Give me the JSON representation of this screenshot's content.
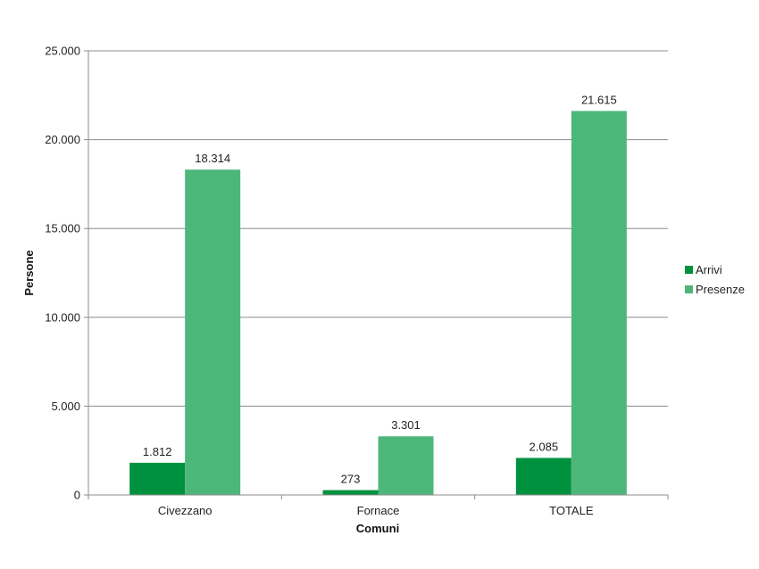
{
  "chart_data": {
    "type": "bar",
    "categories": [
      "Civezzano",
      "Fornace",
      "TOTALE"
    ],
    "series": [
      {
        "name": "Arrivi",
        "values": [
          1812,
          273,
          2085
        ],
        "labels": [
          "1.812",
          "273",
          "2.085"
        ],
        "color": "#00913f"
      },
      {
        "name": "Presenze",
        "values": [
          18314,
          3301,
          21615
        ],
        "labels": [
          "18.314",
          "3.301",
          "21.615"
        ],
        "color": "#4db77a"
      }
    ],
    "title": "",
    "xlabel": "Comuni",
    "ylabel": "Persone",
    "ylim": [
      0,
      25000
    ],
    "yticks": [
      0,
      5000,
      10000,
      15000,
      20000,
      25000
    ],
    "ytick_labels": [
      "0",
      "5.000",
      "10.000",
      "15.000",
      "20.000",
      "25.000"
    ],
    "grid": true,
    "legend": "right"
  }
}
